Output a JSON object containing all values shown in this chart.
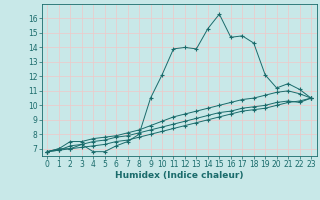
{
  "xlabel": "Humidex (Indice chaleur)",
  "bg_color": "#c8e8e8",
  "grid_color": "#f0c8c8",
  "line_color": "#1a6b6b",
  "xlim": [
    -0.5,
    23.5
  ],
  "ylim": [
    6.5,
    17.0
  ],
  "yticks": [
    7,
    8,
    9,
    10,
    11,
    12,
    13,
    14,
    15,
    16
  ],
  "xticks": [
    0,
    1,
    2,
    3,
    4,
    5,
    6,
    7,
    8,
    9,
    10,
    11,
    12,
    13,
    14,
    15,
    16,
    17,
    18,
    19,
    20,
    21,
    22,
    23
  ],
  "line1_x": [
    0,
    1,
    2,
    3,
    4,
    5,
    6,
    7,
    8,
    9,
    10,
    11,
    12,
    13,
    14,
    15,
    16,
    17,
    18,
    19,
    20,
    21,
    22,
    23
  ],
  "line1_y": [
    6.8,
    7.0,
    7.0,
    7.3,
    6.8,
    6.8,
    7.2,
    7.5,
    8.0,
    10.5,
    12.1,
    13.9,
    14.0,
    13.9,
    15.3,
    16.3,
    14.7,
    14.8,
    14.3,
    12.1,
    11.2,
    11.5,
    11.1,
    10.5
  ],
  "line2_x": [
    0,
    1,
    2,
    3,
    4,
    5,
    6,
    7,
    8,
    9,
    10,
    11,
    12,
    13,
    14,
    15,
    16,
    17,
    18,
    19,
    20,
    21,
    22,
    23
  ],
  "line2_y": [
    6.8,
    7.0,
    7.5,
    7.5,
    7.7,
    7.8,
    7.9,
    8.1,
    8.3,
    8.6,
    8.9,
    9.2,
    9.4,
    9.6,
    9.8,
    10.0,
    10.2,
    10.4,
    10.5,
    10.7,
    10.9,
    11.0,
    10.8,
    10.5
  ],
  "line3_x": [
    0,
    1,
    2,
    3,
    4,
    5,
    6,
    7,
    8,
    9,
    10,
    11,
    12,
    13,
    14,
    15,
    16,
    17,
    18,
    19,
    20,
    21,
    22,
    23
  ],
  "line3_y": [
    6.8,
    6.9,
    7.2,
    7.3,
    7.5,
    7.6,
    7.8,
    7.9,
    8.1,
    8.3,
    8.5,
    8.7,
    8.9,
    9.1,
    9.3,
    9.5,
    9.6,
    9.8,
    9.9,
    10.0,
    10.2,
    10.3,
    10.2,
    10.5
  ],
  "line4_x": [
    0,
    1,
    2,
    3,
    4,
    5,
    6,
    7,
    8,
    9,
    10,
    11,
    12,
    13,
    14,
    15,
    16,
    17,
    18,
    19,
    20,
    21,
    22,
    23
  ],
  "line4_y": [
    6.8,
    6.9,
    7.0,
    7.1,
    7.2,
    7.3,
    7.5,
    7.6,
    7.8,
    8.0,
    8.2,
    8.4,
    8.6,
    8.8,
    9.0,
    9.2,
    9.4,
    9.6,
    9.7,
    9.8,
    10.0,
    10.2,
    10.3,
    10.5
  ],
  "marker_size": 3,
  "linewidth": 0.7,
  "tick_fontsize": 5.5,
  "xlabel_fontsize": 6.5
}
